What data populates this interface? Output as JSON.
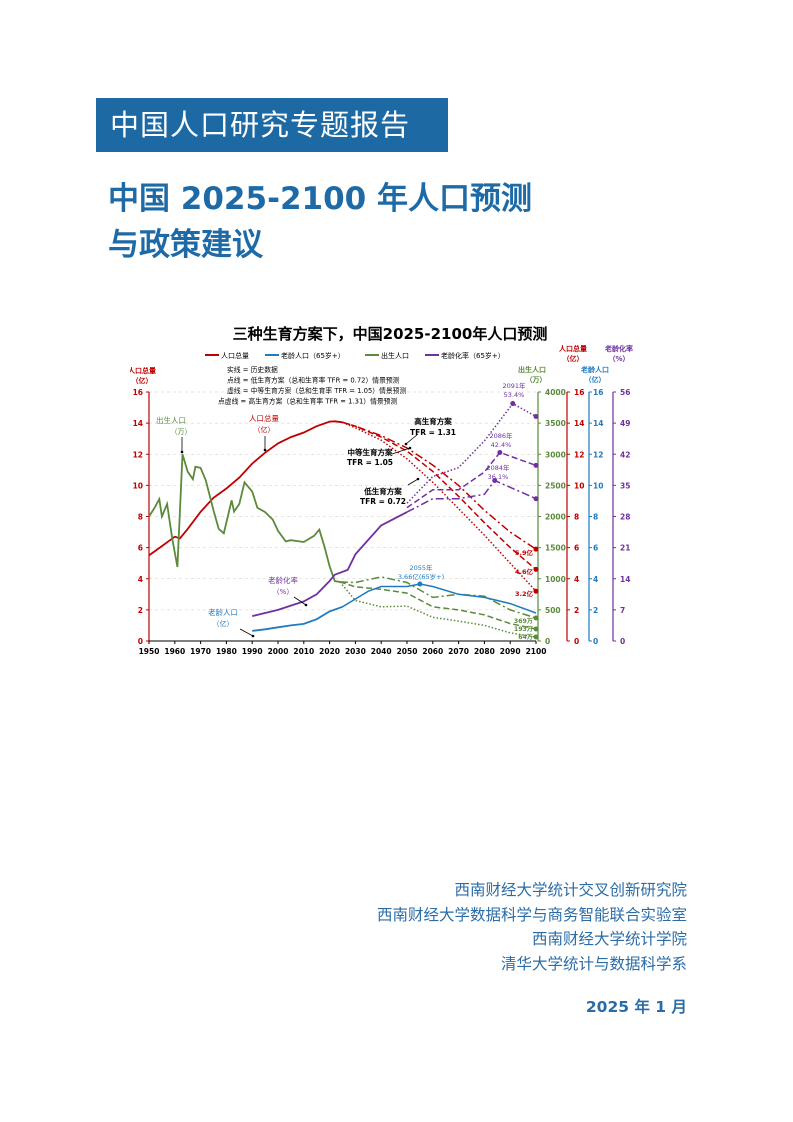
{
  "series_label": "中国人口研究专题报告",
  "title_line1": "中国 2025-2100 年人口预测",
  "title_line2": "与政策建议",
  "institutions": [
    "西南财经大学统计交叉创新研究院",
    "西南财经大学数据科学与商务智能联合实验室",
    "西南财经大学统计学院",
    "清华大学统计与数据科学系"
  ],
  "date": "2025 年 1 月",
  "colors": {
    "brand": "#1C69A4",
    "total": "#C00000",
    "elderly": "#1F7AC0",
    "births": "#5A8A3A",
    "aging": "#7030A0"
  },
  "chart_data": {
    "type": "line",
    "title": "三种生育方案下，中国2025-2100年人口预测",
    "legend": [
      "人口总量",
      "老龄人口（65岁+）",
      "出生人口",
      "老龄化率（65岁+）"
    ],
    "legend_notes": [
      "实线 = 历史数据",
      "点线 = 低生育方案（总和生育率 TFR = 0.72）情景预测",
      "虚线 = 中等生育方案（总和生育率 TFR = 1.05）情景预测",
      "点虚线 = 高生育方案（总和生育率 TFR = 1.31）情景预测"
    ],
    "xlim": [
      1950,
      2100
    ],
    "xticks": [
      1950,
      1960,
      1970,
      1980,
      1990,
      2000,
      2010,
      2020,
      2030,
      2040,
      2050,
      2060,
      2070,
      2080,
      2090,
      2100
    ],
    "axes": {
      "left": {
        "title": [
          "人口总量",
          "（亿）"
        ],
        "ticks": [
          0,
          2,
          4,
          6,
          8,
          10,
          12,
          14,
          16
        ]
      },
      "births": {
        "title": [
          "出生人口",
          "（万）"
        ],
        "ticks": [
          0,
          500,
          1000,
          1500,
          2000,
          2500,
          3000,
          3500,
          4000
        ]
      },
      "total": {
        "title": [
          "人口总量",
          "（亿）"
        ],
        "ticks": [
          0,
          2,
          4,
          6,
          8,
          10,
          12,
          14,
          16
        ]
      },
      "elderly": {
        "title": [
          "老龄人口",
          "（亿）"
        ],
        "ticks": [
          0,
          2,
          4,
          6,
          8,
          10,
          12,
          14,
          16
        ]
      },
      "aging": {
        "title": [
          "老龄化率",
          "（%）"
        ],
        "ticks": [
          0,
          7,
          14,
          21,
          28,
          35,
          42,
          49,
          56
        ]
      }
    },
    "series": [
      {
        "name": "人口总量",
        "scenario": "历史",
        "unit": "亿",
        "x": [
          1950,
          1955,
          1960,
          1962,
          1965,
          1970,
          1975,
          1980,
          1985,
          1990,
          1995,
          2000,
          2005,
          2010,
          2015,
          2020,
          2022,
          2025
        ],
        "y": [
          5.5,
          6.1,
          6.7,
          6.6,
          7.2,
          8.3,
          9.2,
          9.8,
          10.5,
          11.4,
          12.1,
          12.7,
          13.1,
          13.4,
          13.8,
          14.1,
          14.12,
          14.05
        ]
      },
      {
        "name": "人口总量",
        "scenario": "低",
        "unit": "亿",
        "x": [
          2025,
          2030,
          2040,
          2050,
          2060,
          2070,
          2080,
          2090,
          2100
        ],
        "y": [
          14.05,
          13.7,
          12.9,
          11.7,
          10.2,
          8.5,
          6.8,
          5.0,
          3.2
        ]
      },
      {
        "name": "人口总量",
        "scenario": "中",
        "unit": "亿",
        "x": [
          2025,
          2030,
          2040,
          2050,
          2060,
          2070,
          2080,
          2090,
          2100
        ],
        "y": [
          14.05,
          13.8,
          13.1,
          12.2,
          10.9,
          9.3,
          7.6,
          6.0,
          4.6
        ]
      },
      {
        "name": "人口总量",
        "scenario": "高",
        "unit": "亿",
        "x": [
          2025,
          2030,
          2040,
          2050,
          2060,
          2070,
          2080,
          2090,
          2100
        ],
        "y": [
          14.05,
          13.8,
          13.2,
          12.4,
          11.3,
          10.0,
          8.4,
          7.0,
          5.9
        ]
      },
      {
        "name": "出生人口",
        "scenario": "历史",
        "unit": "万",
        "x": [
          1950,
          1952,
          1954,
          1955,
          1957,
          1959,
          1961,
          1963,
          1965,
          1967,
          1968,
          1970,
          1972,
          1975,
          1977,
          1979,
          1981,
          1982,
          1983,
          1985,
          1987,
          1990,
          1992,
          1995,
          1998,
          2000,
          2003,
          2005,
          2010,
          2014,
          2016,
          2018,
          2020,
          2022,
          2024
        ],
        "y": [
          2000,
          2130,
          2280,
          2000,
          2200,
          1650,
          1190,
          3000,
          2720,
          2600,
          2800,
          2780,
          2580,
          2100,
          1800,
          1730,
          2080,
          2260,
          2080,
          2200,
          2550,
          2400,
          2140,
          2070,
          1950,
          1770,
          1600,
          1620,
          1590,
          1690,
          1790,
          1520,
          1200,
          960,
          950
        ]
      },
      {
        "name": "出生人口",
        "scenario": "低",
        "unit": "万",
        "x": [
          2024,
          2030,
          2040,
          2050,
          2060,
          2070,
          2080,
          2090,
          2100
        ],
        "y": [
          950,
          650,
          550,
          560,
          380,
          320,
          250,
          130,
          64
        ]
      },
      {
        "name": "出生人口",
        "scenario": "中",
        "unit": "万",
        "x": [
          2024,
          2030,
          2040,
          2050,
          2060,
          2070,
          2080,
          2090,
          2100
        ],
        "y": [
          950,
          870,
          830,
          770,
          550,
          500,
          420,
          280,
          193
        ]
      },
      {
        "name": "出生人口",
        "scenario": "高",
        "unit": "万",
        "x": [
          2024,
          2030,
          2040,
          2050,
          2060,
          2070,
          2080,
          2090,
          2100
        ],
        "y": [
          950,
          940,
          1030,
          940,
          700,
          750,
          720,
          500,
          369
        ]
      },
      {
        "name": "老龄人口（65岁+）",
        "scenario": "历史",
        "unit": "亿",
        "x": [
          1990,
          1995,
          2000,
          2005,
          2010,
          2015,
          2020,
          2025
        ],
        "y": [
          0.65,
          0.75,
          0.88,
          1.0,
          1.1,
          1.4,
          1.9,
          2.2
        ]
      },
      {
        "name": "老龄人口（65岁+）",
        "scenario": "预测",
        "unit": "亿",
        "x": [
          2025,
          2030,
          2035,
          2040,
          2045,
          2050,
          2055,
          2060,
          2070,
          2080,
          2090,
          2100
        ],
        "y": [
          2.2,
          2.7,
          3.2,
          3.5,
          3.5,
          3.5,
          3.66,
          3.5,
          3.0,
          2.8,
          2.4,
          1.8
        ]
      },
      {
        "name": "老龄化率（65岁+）",
        "scenario": "历史",
        "unit": "%",
        "x": [
          1990,
          2000,
          2010,
          2015,
          2020,
          2022,
          2027,
          2030,
          2040,
          2050
        ],
        "y": [
          5.6,
          7.0,
          8.9,
          10.5,
          13.5,
          14.9,
          16,
          19.5,
          26,
          29
        ]
      },
      {
        "name": "老龄化率（65岁+）",
        "scenario": "低",
        "unit": "%",
        "x": [
          2050,
          2060,
          2070,
          2080,
          2091,
          2100
        ],
        "y": [
          31,
          37,
          39,
          45,
          53.4,
          50.5
        ]
      },
      {
        "name": "老龄化率（65岁+）",
        "scenario": "中",
        "unit": "%",
        "x": [
          2050,
          2060,
          2070,
          2080,
          2086,
          2100
        ],
        "y": [
          30,
          34,
          34,
          38,
          42.4,
          39.5
        ]
      },
      {
        "name": "老龄化率（65岁+）",
        "scenario": "高",
        "unit": "%",
        "x": [
          2050,
          2060,
          2070,
          2080,
          2084,
          2100
        ],
        "y": [
          29,
          32,
          32,
          33,
          36.1,
          32
        ]
      }
    ],
    "annotations": {
      "births_label": [
        "出生人口",
        "（万）"
      ],
      "total_label": [
        "人口总量",
        "（亿）"
      ],
      "aging_label": [
        "老龄化率",
        "（%）"
      ],
      "elderly_label": [
        "老龄人口",
        "（亿）"
      ],
      "high": [
        "高生育方案",
        "TFR = 1.31"
      ],
      "medium": [
        "中等生育方案",
        "TFR = 1.05"
      ],
      "low": [
        "低生育方案",
        "TFR = 0.72"
      ],
      "elderly_peak": [
        "2055年",
        "3.66亿(65岁+)"
      ],
      "aging_low_peak": [
        "2091年",
        "53.4%"
      ],
      "aging_mid_peak": [
        "2086年",
        "42.4%"
      ],
      "aging_high_peak": [
        "2084年",
        "36.1%"
      ],
      "total_end": [
        "5.9亿",
        "4.6亿",
        "3.2亿"
      ],
      "births_end": [
        "369万",
        "193万",
        "64万"
      ]
    }
  }
}
